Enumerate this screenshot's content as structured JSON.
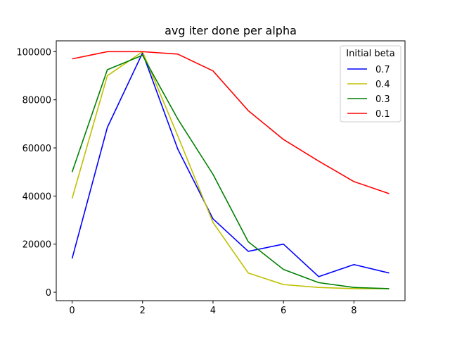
{
  "chart_data": {
    "type": "line",
    "title": "avg iter done per alpha",
    "xlabel": "",
    "ylabel": "",
    "x": [
      0,
      1,
      2,
      3,
      4,
      5,
      6,
      7,
      8,
      9
    ],
    "xlim": [
      -0.45,
      9.45
    ],
    "ylim": [
      -3500,
      104500
    ],
    "xticks": [
      0,
      2,
      4,
      6,
      8
    ],
    "yticks": [
      0,
      20000,
      40000,
      60000,
      80000,
      100000
    ],
    "grid": false,
    "legend": {
      "title": "Initial beta",
      "placement": "top-right"
    },
    "series": [
      {
        "name": "0.7",
        "color": "#0000ff",
        "values": [
          14000,
          68500,
          99500,
          59500,
          30500,
          17000,
          20000,
          6500,
          11500,
          8000
        ]
      },
      {
        "name": "0.4",
        "color": "#bfbf00",
        "values": [
          39000,
          90000,
          100000,
          65000,
          29000,
          8000,
          3200,
          2000,
          1500,
          1500
        ]
      },
      {
        "name": "0.3",
        "color": "#008000",
        "values": [
          50000,
          92500,
          98500,
          72000,
          49000,
          21000,
          9500,
          4000,
          2000,
          1500
        ]
      },
      {
        "name": "0.1",
        "color": "#ff0000",
        "values": [
          97000,
          100000,
          100000,
          99000,
          92000,
          75500,
          63500,
          54500,
          46000,
          41000
        ]
      }
    ]
  }
}
